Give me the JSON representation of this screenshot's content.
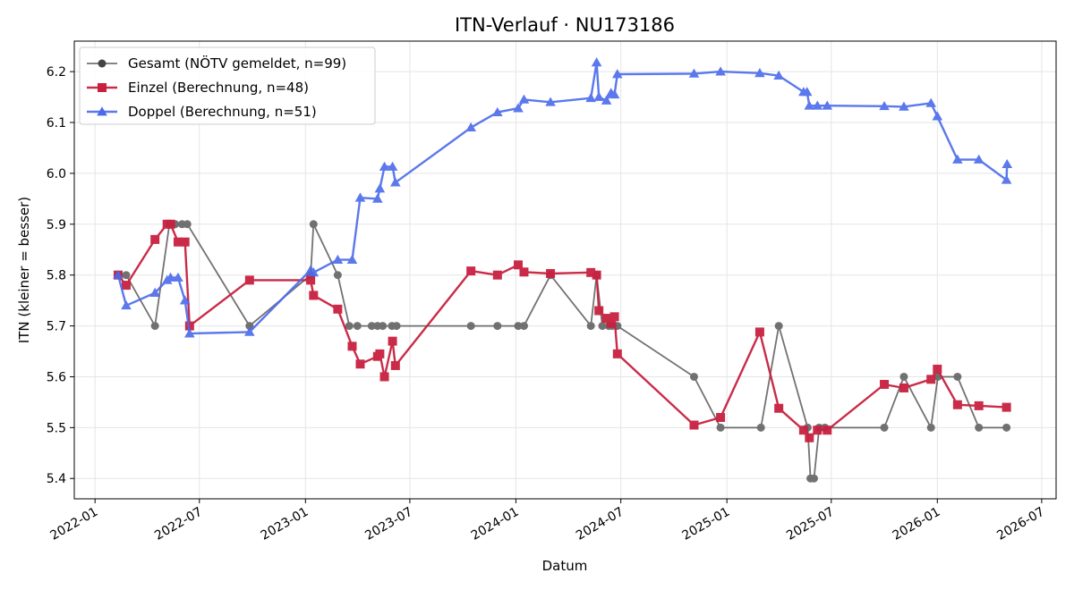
{
  "chart_data": {
    "type": "line",
    "title": "ITN-Verlauf · NU173186",
    "xlabel": "Datum",
    "ylabel": "ITN  (kleiner = besser)",
    "xlim": [
      "2021-11-26",
      "2026-07-26"
    ],
    "ylim": [
      5.36,
      6.26
    ],
    "x_ticks": [
      "2022-01",
      "2022-07",
      "2023-01",
      "2023-07",
      "2024-01",
      "2024-07",
      "2025-01",
      "2025-07",
      "2026-01",
      "2026-07"
    ],
    "y_ticks": [
      "5.4",
      "5.5",
      "5.6",
      "5.7",
      "5.8",
      "5.9",
      "6.0",
      "6.1",
      "6.2"
    ],
    "grid": true,
    "legend_position": "upper-left",
    "series": [
      {
        "name": "Gesamt (NÖTV gemeldet, n=99)",
        "color": "#444444",
        "marker": "circle",
        "points": [
          [
            "2022-02-10",
            5.8
          ],
          [
            "2022-02-24",
            5.8
          ],
          [
            "2022-04-15",
            5.7
          ],
          [
            "2022-05-10",
            5.9
          ],
          [
            "2022-05-20",
            5.9
          ],
          [
            "2022-06-01",
            5.9
          ],
          [
            "2022-06-10",
            5.9
          ],
          [
            "2022-09-26",
            5.7
          ],
          [
            "2023-01-10",
            5.8
          ],
          [
            "2023-01-15",
            5.9
          ],
          [
            "2023-02-26",
            5.8
          ],
          [
            "2023-03-18",
            5.7
          ],
          [
            "2023-04-01",
            5.7
          ],
          [
            "2023-04-26",
            5.7
          ],
          [
            "2023-05-06",
            5.7
          ],
          [
            "2023-05-15",
            5.7
          ],
          [
            "2023-05-31",
            5.7
          ],
          [
            "2023-06-08",
            5.7
          ],
          [
            "2023-10-15",
            5.7
          ],
          [
            "2023-11-30",
            5.7
          ],
          [
            "2024-01-05",
            5.7
          ],
          [
            "2024-01-15",
            5.7
          ],
          [
            "2024-03-01",
            5.8
          ],
          [
            "2024-05-10",
            5.7
          ],
          [
            "2024-05-20",
            5.8
          ],
          [
            "2024-05-30",
            5.7
          ],
          [
            "2024-06-10",
            5.7
          ],
          [
            "2024-06-16",
            5.7
          ],
          [
            "2024-06-25",
            5.7
          ],
          [
            "2024-11-05",
            5.6
          ],
          [
            "2024-12-21",
            5.5
          ],
          [
            "2025-03-01",
            5.5
          ],
          [
            "2025-04-01",
            5.7
          ],
          [
            "2025-05-21",
            5.5
          ],
          [
            "2025-05-26",
            5.4
          ],
          [
            "2025-06-01",
            5.4
          ],
          [
            "2025-06-10",
            5.5
          ],
          [
            "2025-06-20",
            5.5
          ],
          [
            "2025-10-01",
            5.5
          ],
          [
            "2025-11-04",
            5.6
          ],
          [
            "2025-12-21",
            5.5
          ],
          [
            "2026-01-02",
            5.6
          ],
          [
            "2026-02-05",
            5.6
          ],
          [
            "2026-03-14",
            5.5
          ],
          [
            "2026-05-01",
            5.5
          ]
        ]
      },
      {
        "name": "Einzel (Berechnung, n=48)",
        "color": "#c8203f",
        "marker": "square",
        "points": [
          [
            "2022-02-10",
            5.8
          ],
          [
            "2022-02-24",
            5.78
          ],
          [
            "2022-04-15",
            5.87
          ],
          [
            "2022-05-06",
            5.9
          ],
          [
            "2022-05-12",
            5.9
          ],
          [
            "2022-05-25",
            5.865
          ],
          [
            "2022-06-06",
            5.865
          ],
          [
            "2022-06-14",
            5.7
          ],
          [
            "2022-09-26",
            5.79
          ],
          [
            "2023-01-10",
            5.79
          ],
          [
            "2023-01-15",
            5.76
          ],
          [
            "2023-02-26",
            5.733
          ],
          [
            "2023-03-23",
            5.66
          ],
          [
            "2023-04-06",
            5.625
          ],
          [
            "2023-05-06",
            5.64
          ],
          [
            "2023-05-10",
            5.645
          ],
          [
            "2023-05-18",
            5.6
          ],
          [
            "2023-06-01",
            5.67
          ],
          [
            "2023-06-06",
            5.622
          ],
          [
            "2023-10-15",
            5.808
          ],
          [
            "2023-11-30",
            5.8
          ],
          [
            "2024-01-05",
            5.82
          ],
          [
            "2024-01-15",
            5.806
          ],
          [
            "2024-03-01",
            5.803
          ],
          [
            "2024-05-10",
            5.805
          ],
          [
            "2024-05-20",
            5.8
          ],
          [
            "2024-05-24",
            5.73
          ],
          [
            "2024-06-06",
            5.715
          ],
          [
            "2024-06-14",
            5.705
          ],
          [
            "2024-06-20",
            5.718
          ],
          [
            "2024-06-25",
            5.645
          ],
          [
            "2024-11-05",
            5.505
          ],
          [
            "2024-12-21",
            5.52
          ],
          [
            "2025-02-27",
            5.688
          ],
          [
            "2025-04-01",
            5.538
          ],
          [
            "2025-05-14",
            5.495
          ],
          [
            "2025-05-24",
            5.48
          ],
          [
            "2025-06-07",
            5.495
          ],
          [
            "2025-06-24",
            5.495
          ],
          [
            "2025-10-01",
            5.585
          ],
          [
            "2025-11-04",
            5.578
          ],
          [
            "2025-12-21",
            5.595
          ],
          [
            "2026-01-01",
            5.615
          ],
          [
            "2026-02-05",
            5.545
          ],
          [
            "2026-03-14",
            5.543
          ],
          [
            "2026-05-01",
            5.54
          ]
        ]
      },
      {
        "name": "Doppel (Berechnung, n=51)",
        "color": "#4a6aeb",
        "marker": "triangle",
        "points": [
          [
            "2022-02-10",
            5.8
          ],
          [
            "2022-02-24",
            5.74
          ],
          [
            "2022-04-15",
            5.765
          ],
          [
            "2022-05-06",
            5.79
          ],
          [
            "2022-05-12",
            5.795
          ],
          [
            "2022-05-25",
            5.795
          ],
          [
            "2022-06-06",
            5.75
          ],
          [
            "2022-06-14",
            5.685
          ],
          [
            "2022-09-26",
            5.688
          ],
          [
            "2023-01-10",
            5.81
          ],
          [
            "2023-01-15",
            5.805
          ],
          [
            "2023-02-26",
            5.83
          ],
          [
            "2023-03-23",
            5.83
          ],
          [
            "2023-04-06",
            5.952
          ],
          [
            "2023-05-06",
            5.95
          ],
          [
            "2023-05-10",
            5.97
          ],
          [
            "2023-05-18",
            6.013
          ],
          [
            "2023-06-01",
            6.013
          ],
          [
            "2023-06-06",
            5.982
          ],
          [
            "2023-10-15",
            6.09
          ],
          [
            "2023-11-30",
            6.12
          ],
          [
            "2024-01-05",
            6.128
          ],
          [
            "2024-01-15",
            6.145
          ],
          [
            "2024-03-01",
            6.14
          ],
          [
            "2024-05-10",
            6.148
          ],
          [
            "2024-05-20",
            6.218
          ],
          [
            "2024-05-24",
            6.15
          ],
          [
            "2024-06-06",
            6.143
          ],
          [
            "2024-06-14",
            6.158
          ],
          [
            "2024-06-20",
            6.155
          ],
          [
            "2024-06-25",
            6.195
          ],
          [
            "2024-11-05",
            6.196
          ],
          [
            "2024-12-21",
            6.2
          ],
          [
            "2025-02-27",
            6.197
          ],
          [
            "2025-04-01",
            6.192
          ],
          [
            "2025-05-14",
            6.16
          ],
          [
            "2025-05-20",
            6.16
          ],
          [
            "2025-05-24",
            6.133
          ],
          [
            "2025-06-07",
            6.133
          ],
          [
            "2025-06-24",
            6.133
          ],
          [
            "2025-10-01",
            6.132
          ],
          [
            "2025-11-04",
            6.131
          ],
          [
            "2025-12-21",
            6.138
          ],
          [
            "2026-01-01",
            6.112
          ],
          [
            "2026-02-05",
            6.027
          ],
          [
            "2026-03-14",
            6.027
          ],
          [
            "2026-05-01",
            5.987
          ],
          [
            "2026-05-02",
            6.018
          ]
        ]
      }
    ]
  }
}
